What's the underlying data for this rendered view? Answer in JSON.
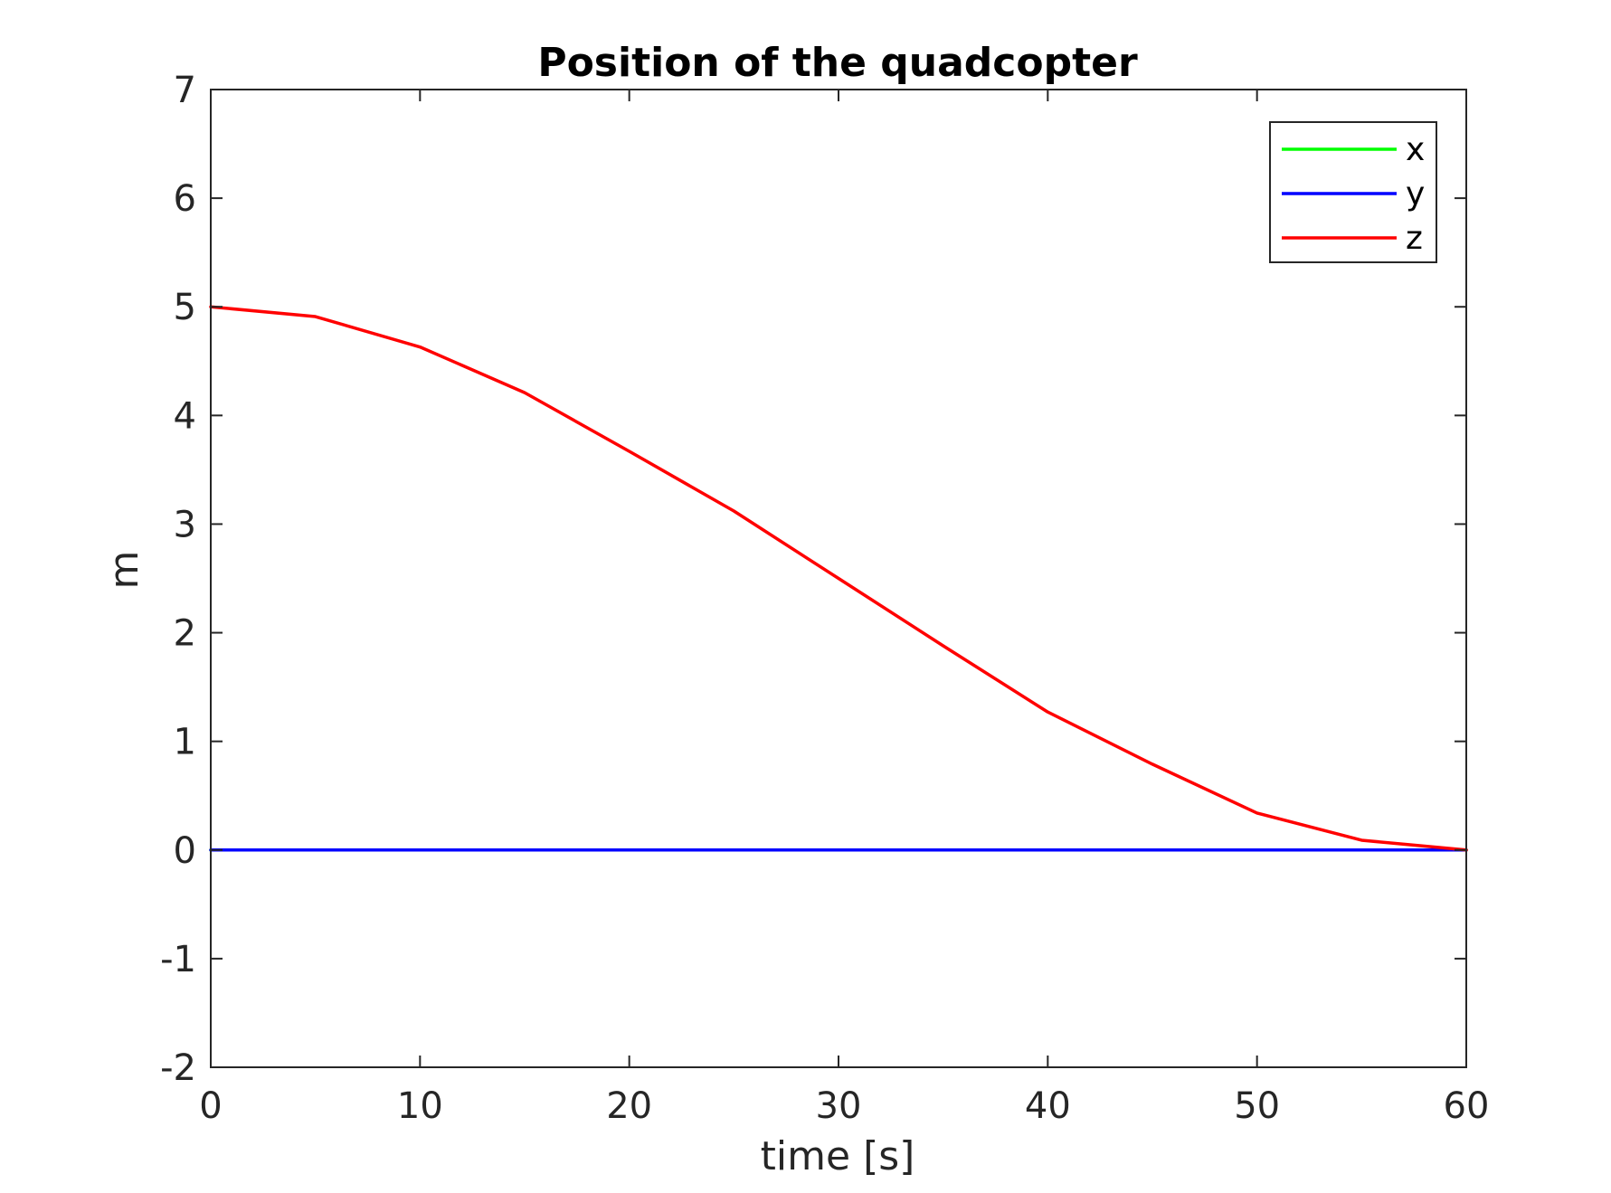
{
  "chart_data": {
    "type": "line",
    "title": "Position of the quadcopter",
    "xlabel": "time [s]",
    "ylabel": "m",
    "xlim": [
      0,
      60
    ],
    "ylim": [
      -2,
      7
    ],
    "xticks": [
      0,
      10,
      20,
      30,
      40,
      50,
      60
    ],
    "xtick_labels": [
      "0",
      "10",
      "20",
      "30",
      "40",
      "50",
      "60"
    ],
    "yticks": [
      -2,
      -1,
      0,
      1,
      2,
      3,
      4,
      5,
      6,
      7
    ],
    "ytick_labels": [
      "-2",
      "-1",
      "0",
      "1",
      "2",
      "3",
      "4",
      "5",
      "6",
      "7"
    ],
    "grid": false,
    "legend_position": "top-right",
    "x": [
      0,
      5,
      10,
      15,
      20,
      25,
      30,
      35,
      40,
      45,
      50,
      55,
      60
    ],
    "series": [
      {
        "name": "x",
        "color": "#00ff00",
        "values": [
          0,
          0,
          0,
          0,
          0,
          0,
          0,
          0,
          0,
          0,
          0,
          0,
          0
        ]
      },
      {
        "name": "y",
        "color": "#0000ff",
        "values": [
          0,
          0,
          0,
          0,
          0,
          0,
          0,
          0,
          0,
          0,
          0,
          0,
          0
        ]
      },
      {
        "name": "z",
        "color": "#ff0000",
        "values": [
          5.0,
          4.91,
          4.63,
          4.21,
          3.67,
          3.12,
          2.5,
          1.88,
          1.27,
          0.79,
          0.34,
          0.09,
          0.0
        ]
      }
    ]
  }
}
